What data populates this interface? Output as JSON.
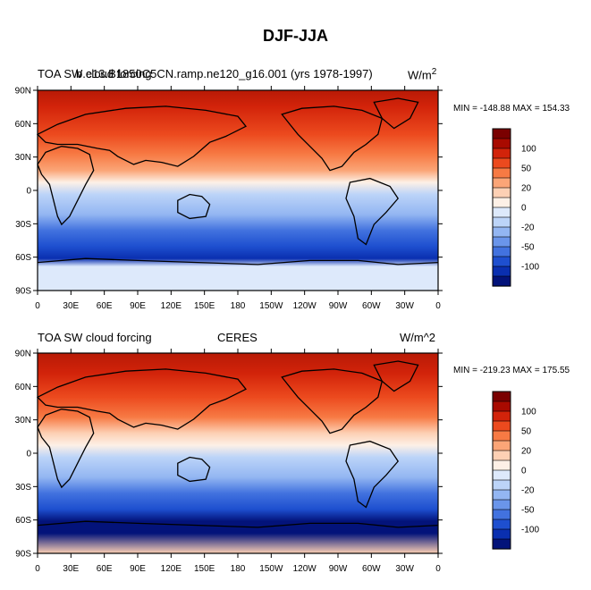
{
  "figure": {
    "title": "DJF-JJA"
  },
  "panels": [
    {
      "id": "model",
      "left_label": "TOA SW cloud forcing",
      "center_label": "b.e13.B1850C5CN.ramp.ne120_g16.001 (yrs 1978-1997)",
      "units_base": "W/m",
      "units_sup": "2",
      "stats": "MIN = -148.88 MAX = 154.33"
    },
    {
      "id": "obs",
      "left_label": "TOA SW cloud forcing",
      "center_label": "CERES",
      "units_base": "W/m^2",
      "units_sup": "",
      "stats": "MIN = -219.23 MAX = 175.55"
    }
  ],
  "axes": {
    "lat_ticks": [
      "90N",
      "60N",
      "30N",
      "0",
      "30S",
      "60S",
      "90S"
    ],
    "lon_ticks": [
      "0",
      "30E",
      "60E",
      "90E",
      "120E",
      "150E",
      "180",
      "150W",
      "120W",
      "90W",
      "60W",
      "30W",
      "0"
    ]
  },
  "colorbar": {
    "labels": [
      "100",
      "50",
      "20",
      "0",
      "-20",
      "-50",
      "-100"
    ],
    "colors": [
      "#7a0000",
      "#a80a00",
      "#d2230a",
      "#ec4a1e",
      "#f77a44",
      "#fba577",
      "#fdd0b4",
      "#fdf0e6",
      "#dde9fb",
      "#bcd4f8",
      "#93b6f2",
      "#6a95ea",
      "#4272df",
      "#1e4fcf",
      "#0a2fb0",
      "#03137a"
    ]
  },
  "colors": {
    "land_outline": "#000000",
    "frame": "#000000"
  }
}
